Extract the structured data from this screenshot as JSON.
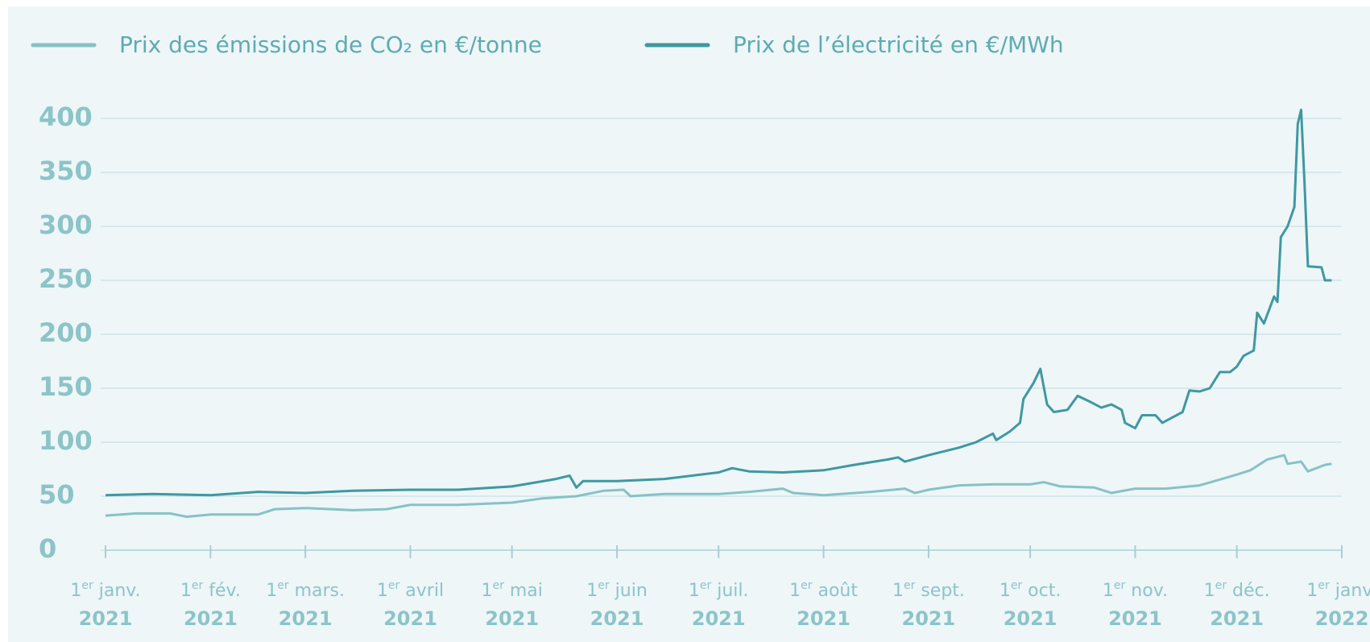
{
  "chart_data": {
    "type": "line",
    "xlim": [
      "2021-01-01",
      "2022-01-01"
    ],
    "ylim": [
      0,
      400
    ],
    "yticks": [
      0,
      50,
      100,
      150,
      200,
      250,
      300,
      350,
      400
    ],
    "grid": true,
    "xticks": [
      {
        "value": "2021-01-01",
        "label": [
          "1",
          "er",
          " janv.",
          "2021"
        ]
      },
      {
        "value": "2021-02-01",
        "label": [
          "1",
          "er",
          " fév.",
          "2021"
        ]
      },
      {
        "value": "2021-03-01",
        "label": [
          "1",
          "er",
          " mars.",
          "2021"
        ]
      },
      {
        "value": "2021-04-01",
        "label": [
          "1",
          "er",
          " avril",
          "2021"
        ]
      },
      {
        "value": "2021-05-01",
        "label": [
          "1",
          "er",
          " mai",
          "2021"
        ]
      },
      {
        "value": "2021-06-01",
        "label": [
          "1",
          "er",
          " juin",
          "2021"
        ]
      },
      {
        "value": "2021-07-01",
        "label": [
          "1",
          "er",
          " juil.",
          "2021"
        ]
      },
      {
        "value": "2021-08-01",
        "label": [
          "1",
          "er",
          " août",
          "2021"
        ]
      },
      {
        "value": "2021-09-01",
        "label": [
          "1",
          "er",
          " sept.",
          "2021"
        ]
      },
      {
        "value": "2021-10-01",
        "label": [
          "1",
          "er",
          " oct.",
          "2021"
        ]
      },
      {
        "value": "2021-11-01",
        "label": [
          "1",
          "er",
          " nov.",
          "2021"
        ]
      },
      {
        "value": "2021-12-01",
        "label": [
          "1",
          "er",
          " déc.",
          "2021"
        ]
      },
      {
        "value": "2022-01-01",
        "label": [
          "1",
          "er",
          " janv.",
          "2022"
        ]
      }
    ],
    "series": [
      {
        "name": "Prix des émissions de CO₂ en €/tonne",
        "color": "#86c2c6",
        "x": [
          "2021-01-01",
          "2021-01-10",
          "2021-01-20",
          "2021-01-25",
          "2021-02-01",
          "2021-02-15",
          "2021-02-20",
          "2021-03-01",
          "2021-03-15",
          "2021-03-25",
          "2021-04-01",
          "2021-04-15",
          "2021-05-01",
          "2021-05-10",
          "2021-05-20",
          "2021-05-28",
          "2021-06-03",
          "2021-06-05",
          "2021-06-15",
          "2021-07-01",
          "2021-07-10",
          "2021-07-20",
          "2021-07-23",
          "2021-08-01",
          "2021-08-15",
          "2021-08-25",
          "2021-08-28",
          "2021-09-01",
          "2021-09-10",
          "2021-09-20",
          "2021-10-01",
          "2021-10-05",
          "2021-10-10",
          "2021-10-20",
          "2021-10-25",
          "2021-11-01",
          "2021-11-10",
          "2021-11-20",
          "2021-12-01",
          "2021-12-05",
          "2021-12-10",
          "2021-12-15",
          "2021-12-16",
          "2021-12-20",
          "2021-12-22",
          "2021-12-27",
          "2021-12-29"
        ],
        "values": [
          32,
          34,
          34,
          31,
          33,
          33,
          38,
          39,
          37,
          38,
          42,
          42,
          44,
          48,
          50,
          55,
          56,
          50,
          52,
          52,
          54,
          57,
          53,
          51,
          54,
          57,
          53,
          56,
          60,
          61,
          61,
          63,
          59,
          58,
          53,
          57,
          57,
          60,
          70,
          74,
          84,
          88,
          80,
          82,
          73,
          79,
          80
        ]
      },
      {
        "name": "Prix de l’électricité en €/MWh",
        "color": "#3f98a1",
        "x": [
          "2021-01-01",
          "2021-01-15",
          "2021-02-01",
          "2021-02-15",
          "2021-03-01",
          "2021-03-15",
          "2021-04-01",
          "2021-04-15",
          "2021-05-01",
          "2021-05-14",
          "2021-05-18",
          "2021-05-20",
          "2021-05-22",
          "2021-06-01",
          "2021-06-15",
          "2021-07-01",
          "2021-07-05",
          "2021-07-10",
          "2021-07-20",
          "2021-08-01",
          "2021-08-10",
          "2021-08-20",
          "2021-08-23",
          "2021-08-25",
          "2021-09-01",
          "2021-09-10",
          "2021-09-15",
          "2021-09-20",
          "2021-09-21",
          "2021-09-25",
          "2021-09-28",
          "2021-09-29",
          "2021-10-02",
          "2021-10-04",
          "2021-10-06",
          "2021-10-08",
          "2021-10-12",
          "2021-10-15",
          "2021-10-19",
          "2021-10-22",
          "2021-10-25",
          "2021-10-28",
          "2021-10-29",
          "2021-11-01",
          "2021-11-03",
          "2021-11-07",
          "2021-11-09",
          "2021-11-15",
          "2021-11-17",
          "2021-11-20",
          "2021-11-23",
          "2021-11-26",
          "2021-11-29",
          "2021-12-01",
          "2021-12-03",
          "2021-12-06",
          "2021-12-07",
          "2021-12-09",
          "2021-12-12",
          "2021-12-13",
          "2021-12-14",
          "2021-12-16",
          "2021-12-18",
          "2021-12-19",
          "2021-12-20",
          "2021-12-21",
          "2021-12-22",
          "2021-12-26",
          "2021-12-27",
          "2021-12-29"
        ],
        "values": [
          51,
          52,
          51,
          54,
          53,
          55,
          56,
          56,
          59,
          66,
          69,
          58,
          64,
          64,
          66,
          72,
          76,
          73,
          72,
          74,
          79,
          84,
          86,
          82,
          88,
          95,
          100,
          108,
          102,
          110,
          118,
          140,
          155,
          168,
          135,
          128,
          130,
          143,
          137,
          132,
          135,
          130,
          118,
          113,
          125,
          125,
          118,
          128,
          148,
          147,
          150,
          165,
          165,
          170,
          180,
          185,
          220,
          210,
          235,
          230,
          290,
          300,
          318,
          395,
          408,
          340,
          263,
          262,
          250,
          250
        ]
      }
    ]
  }
}
